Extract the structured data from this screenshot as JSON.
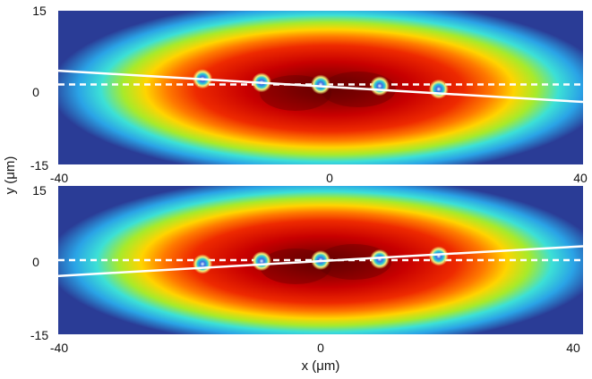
{
  "chart_data": [
    {
      "type": "heatmap",
      "xlabel": "",
      "ylabel": "",
      "xlim": [
        -40,
        40
      ],
      "ylim": [
        -15,
        15
      ],
      "x_ticks": [
        "-40",
        "0",
        "40"
      ],
      "y_ticks": [
        "15",
        "0",
        "-15"
      ],
      "colormap": "jet",
      "ions_x": [
        -18,
        -9,
        0,
        9,
        18
      ],
      "ions_y": [
        1.7,
        1.0,
        0.6,
        0.3,
        -0.3
      ],
      "dashed_line_y": 0.6,
      "fit_line": {
        "x": [
          -40,
          40
        ],
        "y": [
          3.3,
          -2.8
        ]
      }
    },
    {
      "type": "heatmap",
      "xlabel": "x (μm)",
      "ylabel": "",
      "xlim": [
        -40,
        40
      ],
      "ylim": [
        -15,
        15
      ],
      "x_ticks": [
        "-40",
        "0",
        "40"
      ],
      "y_ticks": [
        "15",
        "0",
        "-15"
      ],
      "colormap": "jet",
      "ions_x": [
        -18,
        -9,
        0,
        9,
        18
      ],
      "ions_y": [
        -0.8,
        -0.2,
        0.0,
        0.2,
        0.8
      ],
      "dashed_line_y": 0.0,
      "fit_line": {
        "x": [
          -40,
          40
        ],
        "y": [
          -3.2,
          2.8
        ]
      }
    }
  ],
  "shared_ylabel": "y (μm)",
  "colors": {
    "background": "#2a3c96",
    "line": "#ffffff"
  }
}
